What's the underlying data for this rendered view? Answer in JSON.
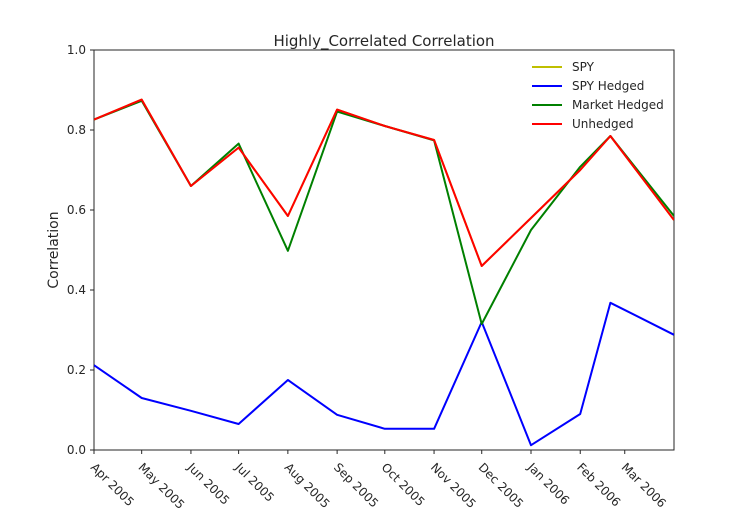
{
  "chart_data": {
    "type": "line",
    "title": "Highly_Correlated Correlation",
    "xlabel": "",
    "ylabel": "Correlation",
    "ylim": [
      0.0,
      1.0
    ],
    "yticks": [
      "0.0",
      "0.2",
      "0.4",
      "0.6",
      "0.8",
      "1.0"
    ],
    "grid": false,
    "legend_position": "top-right",
    "categories": [
      "Apr 2005",
      "May 2005",
      "Jun 2005",
      "Jul 2005",
      "Aug 2005",
      "Sep 2005",
      "Oct 2005",
      "Nov 2005",
      "Dec 2005",
      "Jan 2006",
      "Feb 2006",
      "Mar 2006"
    ],
    "x": [
      {
        "date": "2005-04-01"
      },
      {
        "date": "2005-05-01"
      },
      {
        "date": "2005-06-01"
      },
      {
        "date": "2005-07-01"
      },
      {
        "date": "2005-08-01"
      },
      {
        "date": "2005-09-01"
      },
      {
        "date": "2005-10-01"
      },
      {
        "date": "2005-11-01"
      },
      {
        "date": "2005-12-01"
      },
      {
        "date": "2006-01-01"
      },
      {
        "date": "2006-02-01"
      },
      {
        "date": "2006-03-01"
      }
    ],
    "series": [
      {
        "name": "SPY",
        "color": "#bfbf00",
        "points": [
          {
            "date": "2005-04-01",
            "y": 0.826
          },
          {
            "date": "2005-05-01",
            "y": 0.876
          },
          {
            "date": "2005-06-01",
            "y": 0.66
          },
          {
            "date": "2005-07-01",
            "y": 0.756
          },
          {
            "date": "2005-08-01",
            "y": 0.585
          },
          {
            "date": "2005-09-01",
            "y": 0.851
          },
          {
            "date": "2005-10-01",
            "y": 0.81
          },
          {
            "date": "2005-11-01",
            "y": 0.775
          },
          {
            "date": "2005-12-01",
            "y": 0.46
          },
          {
            "date": "2006-01-01",
            "y": 0.58
          },
          {
            "date": "2006-02-01",
            "y": 0.7
          },
          {
            "date": "2006-02-20",
            "y": 0.785
          },
          {
            "date": "2006-04-01",
            "y": 0.575
          }
        ]
      },
      {
        "name": "SPY Hedged",
        "color": "#0000ff",
        "points": [
          {
            "date": "2005-04-01",
            "y": 0.212
          },
          {
            "date": "2005-05-01",
            "y": 0.13
          },
          {
            "date": "2005-06-01",
            "y": 0.098
          },
          {
            "date": "2005-07-01",
            "y": 0.065
          },
          {
            "date": "2005-08-01",
            "y": 0.175
          },
          {
            "date": "2005-09-01",
            "y": 0.088
          },
          {
            "date": "2005-10-01",
            "y": 0.053
          },
          {
            "date": "2005-11-01",
            "y": 0.053
          },
          {
            "date": "2005-12-01",
            "y": 0.32
          },
          {
            "date": "2006-01-01",
            "y": 0.012
          },
          {
            "date": "2006-02-01",
            "y": 0.09
          },
          {
            "date": "2006-02-20",
            "y": 0.368
          },
          {
            "date": "2006-04-01",
            "y": 0.288
          }
        ]
      },
      {
        "name": "Market Hedged",
        "color": "#008000",
        "points": [
          {
            "date": "2005-04-01",
            "y": 0.826
          },
          {
            "date": "2005-05-01",
            "y": 0.873
          },
          {
            "date": "2005-06-01",
            "y": 0.66
          },
          {
            "date": "2005-07-01",
            "y": 0.766
          },
          {
            "date": "2005-08-01",
            "y": 0.498
          },
          {
            "date": "2005-09-01",
            "y": 0.846
          },
          {
            "date": "2005-10-01",
            "y": 0.81
          },
          {
            "date": "2005-11-01",
            "y": 0.774
          },
          {
            "date": "2005-12-01",
            "y": 0.315
          },
          {
            "date": "2006-01-01",
            "y": 0.55
          },
          {
            "date": "2006-02-01",
            "y": 0.708
          },
          {
            "date": "2006-02-20",
            "y": 0.785
          },
          {
            "date": "2006-04-01",
            "y": 0.585
          }
        ]
      },
      {
        "name": "Unhedged",
        "color": "#ff0000",
        "points": [
          {
            "date": "2005-04-01",
            "y": 0.826
          },
          {
            "date": "2005-05-01",
            "y": 0.876
          },
          {
            "date": "2005-06-01",
            "y": 0.66
          },
          {
            "date": "2005-07-01",
            "y": 0.756
          },
          {
            "date": "2005-08-01",
            "y": 0.585
          },
          {
            "date": "2005-09-01",
            "y": 0.851
          },
          {
            "date": "2005-10-01",
            "y": 0.81
          },
          {
            "date": "2005-11-01",
            "y": 0.775
          },
          {
            "date": "2005-12-01",
            "y": 0.46
          },
          {
            "date": "2006-01-01",
            "y": 0.58
          },
          {
            "date": "2006-02-01",
            "y": 0.7
          },
          {
            "date": "2006-02-20",
            "y": 0.785
          },
          {
            "date": "2006-04-01",
            "y": 0.575
          }
        ]
      }
    ]
  }
}
